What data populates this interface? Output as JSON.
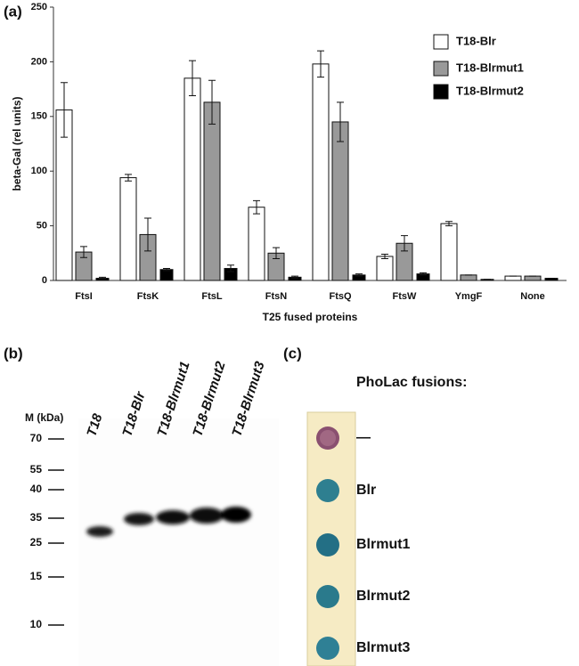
{
  "panel_labels": [
    "(a)",
    "(b)",
    "(c)"
  ],
  "chart_data": {
    "type": "bar",
    "y_label": "beta-Gal (rel units)",
    "x_label": "T25 fused proteins",
    "categories": [
      "FtsI",
      "FtsK",
      "FtsL",
      "FtsN",
      "FtsQ",
      "FtsW",
      "YmgF",
      "None"
    ],
    "series": [
      {
        "name": "T18-Blr",
        "color": "#ffffff",
        "values": [
          156,
          94,
          185,
          67,
          198,
          22,
          52,
          4
        ],
        "errors": [
          25,
          3,
          16,
          6,
          12,
          2,
          2,
          0
        ]
      },
      {
        "name": "T18-Blrmut1",
        "color": "#999999",
        "values": [
          26,
          42,
          163,
          25,
          145,
          34,
          5,
          4
        ],
        "errors": [
          5,
          15,
          20,
          5,
          18,
          7,
          0,
          0
        ]
      },
      {
        "name": "T18-Blrmut2",
        "color": "#000000",
        "values": [
          2,
          10,
          11,
          3,
          5,
          6,
          1,
          2
        ],
        "errors": [
          1,
          1,
          3,
          1,
          1,
          1,
          0,
          0
        ]
      }
    ],
    "ylim": [
      0,
      250
    ],
    "yticks": [
      0,
      50,
      100,
      150,
      200,
      250
    ],
    "legend": "upper right"
  },
  "gel": {
    "marker_title": "M (kDa)",
    "markers": [
      "70",
      "55",
      "40",
      "35",
      "25",
      "15",
      "10"
    ],
    "lanes": [
      "T18",
      "T18-Blr",
      "T18-Blrmut1",
      "T18-Blrmut2",
      "T18-Blrmut3"
    ]
  },
  "plate": {
    "title": "PhoLac fusions:",
    "rows": [
      "—",
      "Blr",
      "Blrmut1",
      "Blrmut2",
      "Blrmut3"
    ]
  }
}
